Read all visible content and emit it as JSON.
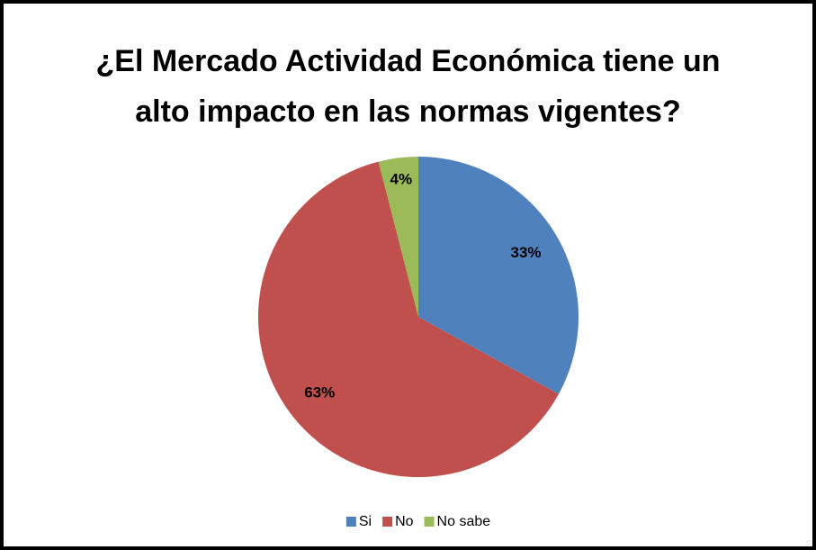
{
  "chart_data": {
    "type": "pie",
    "title": "¿El Mercado Actividad Económica tiene un alto impacto en las normas vigentes?",
    "categories": [
      "Si",
      "No",
      "No sabe"
    ],
    "values": [
      33,
      63,
      4
    ],
    "value_labels": [
      "33%",
      "63%",
      "4%"
    ],
    "colors": [
      "#4f81bd",
      "#c0504d",
      "#9bbb59"
    ],
    "legend": "bottom"
  }
}
